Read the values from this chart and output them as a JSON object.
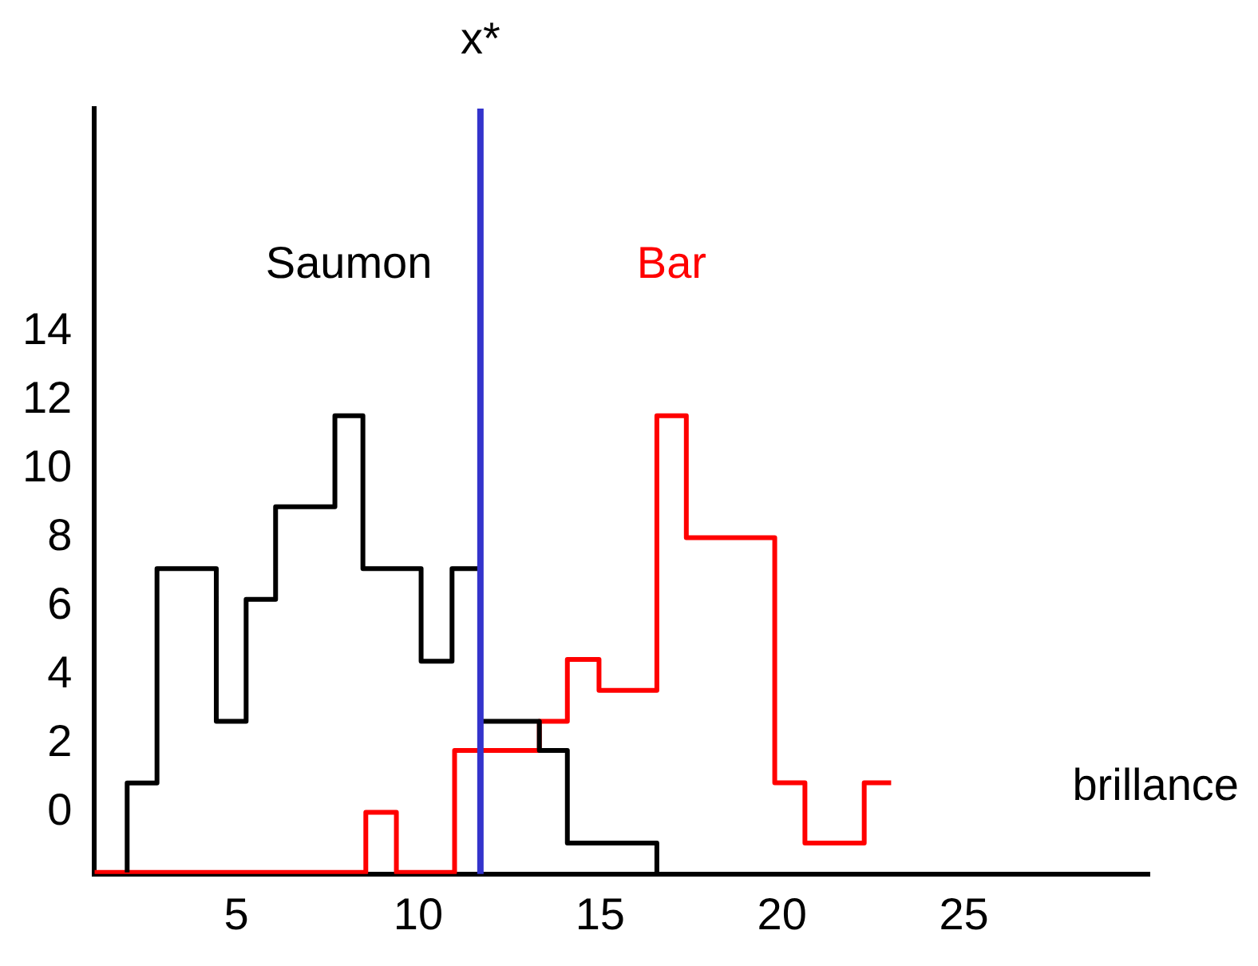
{
  "chart_data": {
    "type": "step",
    "xlabel": "brillance",
    "xlim": [
      1.1,
      30.1
    ],
    "xticks": [
      5,
      10,
      15,
      20,
      25
    ],
    "ylim": [
      -1.8,
      20.5
    ],
    "yticks": [
      0,
      2,
      4,
      6,
      8,
      10,
      12,
      14
    ],
    "grid": false,
    "legend": false,
    "marker": "none",
    "line_style": "solid",
    "series": [
      {
        "name": "Saumon",
        "color": "#000000",
        "x": [
          2.0,
          2.0,
          2.82,
          4.45,
          5.27,
          6.08,
          7.71,
          8.48,
          10.08,
          10.93,
          11.71,
          13.33,
          14.1,
          16.56
        ],
        "values": [
          -1.75,
          0.85,
          7.1,
          2.65,
          6.2,
          8.9,
          11.55,
          7.1,
          4.4,
          7.1,
          2.65,
          1.8,
          -0.9,
          -1.75
        ]
      },
      {
        "name": "Bar",
        "color": "#ff0000",
        "x": [
          1.1,
          8.56,
          9.4,
          11.0,
          13.33,
          14.1,
          14.97,
          16.56,
          17.37,
          19.8,
          20.63,
          22.26,
          23.0
        ],
        "values": [
          -1.75,
          0,
          -1.75,
          1.8,
          2.65,
          4.45,
          3.55,
          11.55,
          8.0,
          0.86,
          -0.9,
          0.86,
          0.86
        ]
      }
    ],
    "ref_lines": [
      {
        "axis": "x",
        "value": 11.71,
        "label": "x*",
        "color": "#3333cc"
      }
    ]
  }
}
